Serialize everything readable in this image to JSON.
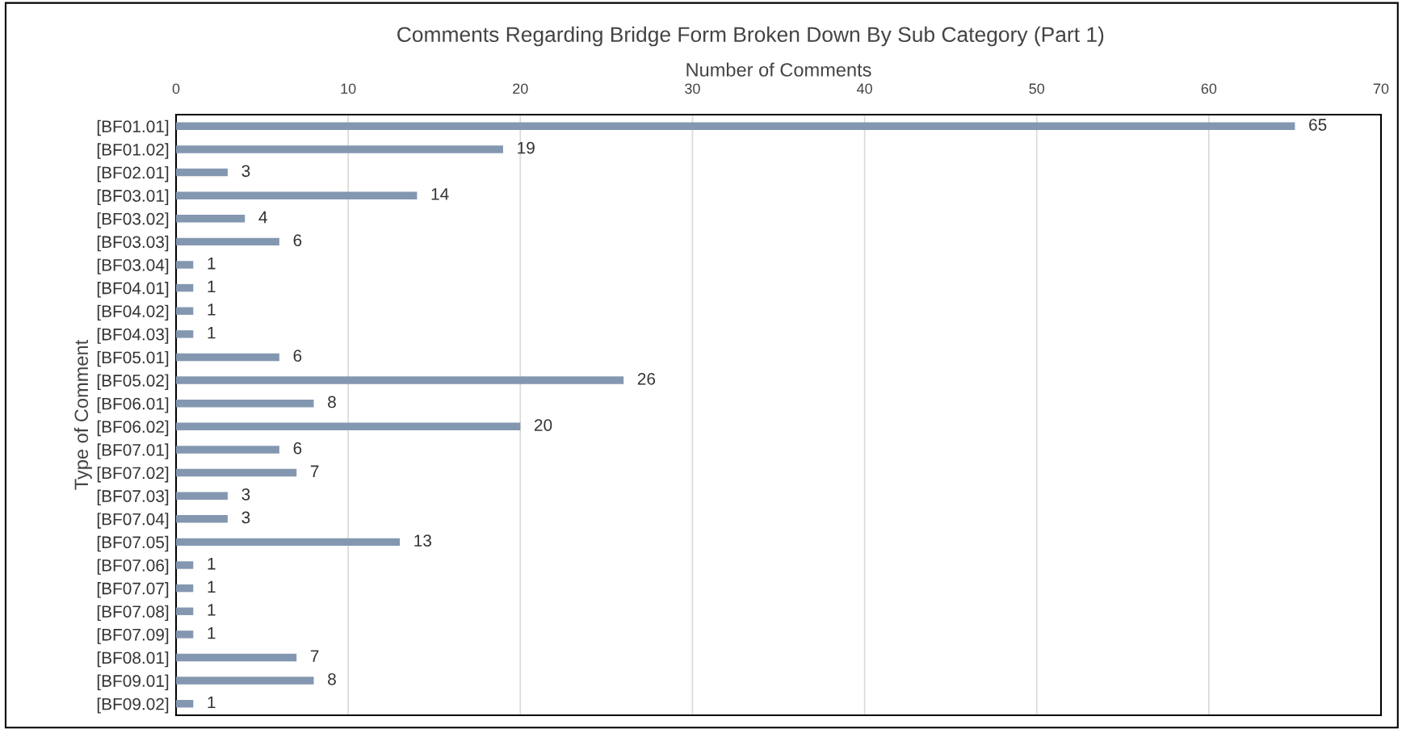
{
  "chart_data": {
    "type": "bar",
    "orientation": "horizontal",
    "title": "Comments Regarding Bridge Form Broken Down By Sub Category (Part 1)",
    "xlabel": "Number of Comments",
    "ylabel": "Type of Comment",
    "categories": [
      "[BF01.01]",
      "[BF01.02]",
      "[BF02.01]",
      "[BF03.01]",
      "[BF03.02]",
      "[BF03.03]",
      "[BF03.04]",
      "[BF04.01]",
      "[BF04.02]",
      "[BF04.03]",
      "[BF05.01]",
      "[BF05.02]",
      "[BF06.01]",
      "[BF06.02]",
      "[BF07.01]",
      "[BF07.02]",
      "[BF07.03]",
      "[BF07.04]",
      "[BF07.05]",
      "[BF07.06]",
      "[BF07.07]",
      "[BF07.08]",
      "[BF07.09]",
      "[BF08.01]",
      "[BF09.01]",
      "[BF09.02]"
    ],
    "values": [
      65,
      19,
      3,
      14,
      4,
      6,
      1,
      1,
      1,
      1,
      6,
      26,
      8,
      20,
      6,
      7,
      3,
      3,
      13,
      1,
      1,
      1,
      1,
      7,
      8,
      1
    ],
    "color": "#8497b0",
    "data_labels": true,
    "grid": "x",
    "xlim": [
      0,
      70
    ],
    "xticks": [
      0,
      10,
      20,
      30,
      40,
      50,
      60,
      70
    ]
  }
}
